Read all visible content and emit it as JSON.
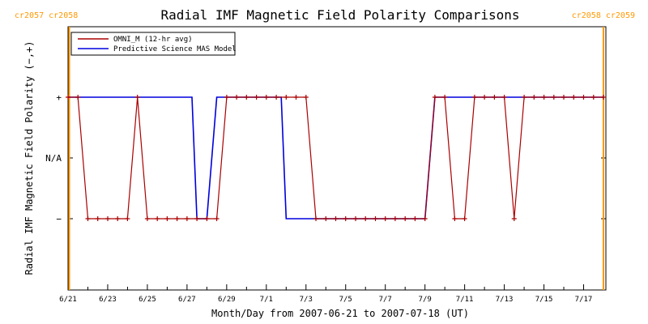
{
  "chart_data": {
    "type": "line",
    "title": "Radial IMF Magnetic Field Polarity Comparisons",
    "xlabel": "Month/Day from 2007-06-21 to 2007-07-18 (UT)",
    "ylabel": "Radial IMF Magnetic Field Polarity (−,+)",
    "x_range": [
      "2007-06-21",
      "2007-07-18"
    ],
    "xticks": [
      "6/21",
      "6/23",
      "6/25",
      "6/27",
      "6/29",
      "7/1",
      "7/3",
      "7/5",
      "7/7",
      "7/9",
      "7/11",
      "7/13",
      "7/15",
      "7/17"
    ],
    "yticks": [
      "+",
      "N/A",
      "−"
    ],
    "carrington_markers": [
      {
        "date": "2007-06-21",
        "label": "cr2057 cr2058",
        "side": "left"
      },
      {
        "date": "2007-07-18",
        "label": "cr2058 cr2059",
        "side": "right"
      }
    ],
    "marker_color": "#ff9900",
    "series": [
      {
        "name": "OMNI_M (12-hr avg)",
        "color": "#aa0000",
        "marker": "plus",
        "x": [
          "2007-06-21T00:00",
          "2007-06-21T12:00",
          "2007-06-22T00:00",
          "2007-06-22T12:00",
          "2007-06-23T00:00",
          "2007-06-23T12:00",
          "2007-06-24T00:00",
          "2007-06-24T12:00",
          "2007-06-25T00:00",
          "2007-06-25T12:00",
          "2007-06-26T00:00",
          "2007-06-26T12:00",
          "2007-06-27T00:00",
          "2007-06-27T12:00",
          "2007-06-28T00:00",
          "2007-06-28T12:00",
          "2007-06-29T00:00",
          "2007-06-29T12:00",
          "2007-06-30T00:00",
          "2007-06-30T12:00",
          "2007-07-01T00:00",
          "2007-07-01T12:00",
          "2007-07-02T00:00",
          "2007-07-02T12:00",
          "2007-07-03T00:00",
          "2007-07-03T12:00",
          "2007-07-04T00:00",
          "2007-07-04T12:00",
          "2007-07-05T00:00",
          "2007-07-05T12:00",
          "2007-07-06T00:00",
          "2007-07-06T12:00",
          "2007-07-07T00:00",
          "2007-07-07T12:00",
          "2007-07-08T00:00",
          "2007-07-08T12:00",
          "2007-07-09T00:00",
          "2007-07-09T12:00",
          "2007-07-10T00:00",
          "2007-07-10T12:00",
          "2007-07-11T00:00",
          "2007-07-11T12:00",
          "2007-07-12T00:00",
          "2007-07-12T12:00",
          "2007-07-13T00:00",
          "2007-07-13T12:00",
          "2007-07-14T00:00",
          "2007-07-14T12:00",
          "2007-07-15T00:00",
          "2007-07-15T12:00",
          "2007-07-16T00:00",
          "2007-07-16T12:00",
          "2007-07-17T00:00",
          "2007-07-17T12:00",
          "2007-07-18T00:00"
        ],
        "values": [
          "+",
          "+",
          "−",
          "−",
          "−",
          "−",
          "−",
          "+",
          "−",
          "−",
          "−",
          "−",
          "−",
          "−",
          "−",
          "−",
          "+",
          "+",
          "+",
          "+",
          "+",
          "+",
          "+",
          "+",
          "+",
          "−",
          "−",
          "−",
          "−",
          "−",
          "−",
          "−",
          "−",
          "−",
          "−",
          "−",
          "−",
          "+",
          "+",
          "−",
          "−",
          "+",
          "+",
          "+",
          "+",
          "−",
          "+",
          "+",
          "+",
          "+",
          "+",
          "+",
          "+",
          "+",
          "+"
        ]
      },
      {
        "name": "Predictive Science MAS Model",
        "color": "#0000dd",
        "x": [
          "2007-06-21T00:00",
          "2007-06-27T06:00",
          "2007-06-27T12:00",
          "2007-06-28T00:00",
          "2007-06-28T12:00",
          "2007-07-01T18:00",
          "2007-07-02T00:00",
          "2007-07-09T00:00",
          "2007-07-09T12:00",
          "2007-07-18T00:00"
        ],
        "values": [
          "+",
          "+",
          "−",
          "−",
          "+",
          "+",
          "−",
          "−",
          "+",
          "+"
        ]
      }
    ],
    "grid": false,
    "legend_position": "top-left"
  }
}
